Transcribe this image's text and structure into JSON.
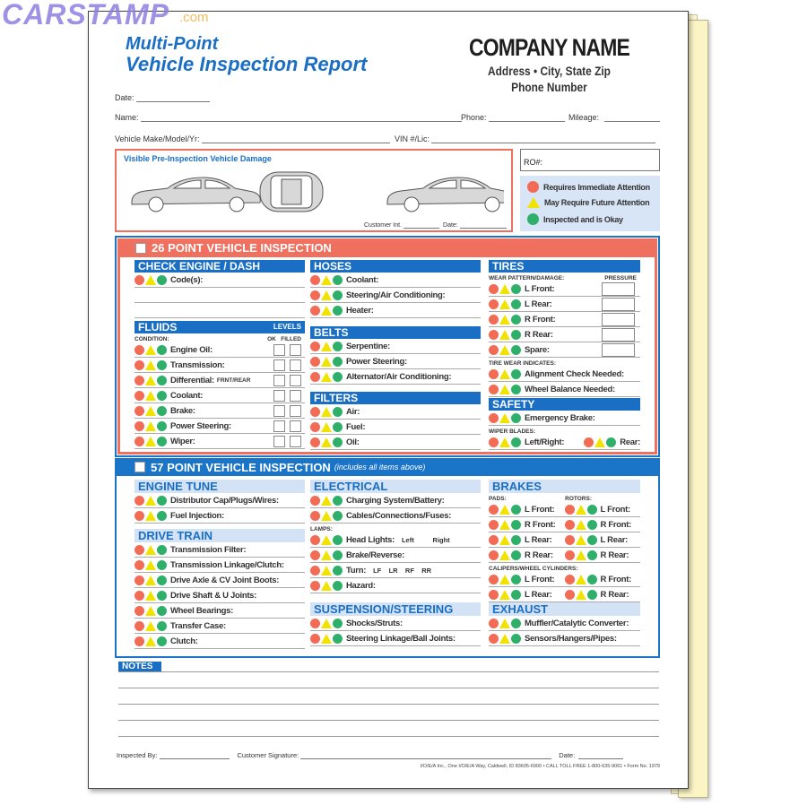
{
  "watermark": {
    "text": "CARSTAMP",
    "suffix": ".com"
  },
  "title": {
    "line1": "Multi-Point",
    "line2": "Vehicle Inspection Report"
  },
  "company": {
    "name": "COMPANY NAME",
    "address": "Address • City, State Zip",
    "phone": "Phone Number"
  },
  "fields": {
    "date": "Date:",
    "name": "Name:",
    "phone": "Phone:",
    "mileage": "Mileage:",
    "vehicle": "Vehicle Make/Model/Yr:",
    "vin": "VIN #/Lic:",
    "ro": "RO#:"
  },
  "damage": {
    "title": "Visible Pre-Inspection Vehicle Damage",
    "customer_int": "Customer Int.",
    "date": "Date:"
  },
  "legend": {
    "red": "Requires Immediate Attention",
    "yellow": "May Require Future Attention",
    "green": "Inspected and is Okay"
  },
  "colors": {
    "red": "#f26b55",
    "yellow": "#f1e300",
    "green": "#2fb06a",
    "blue": "#1a6fc4",
    "salmon": "#f07060"
  },
  "insp26": {
    "title": "26 POINT VEHICLE INSPECTION"
  },
  "insp57": {
    "title": "57 POINT VEHICLE INSPECTION",
    "note": "(includes all items above)"
  },
  "columns": [
    {
      "group": "26",
      "blocks": [
        {
          "type": "head",
          "text": "CHECK ENGINE / DASH  LIGHTS"
        },
        {
          "type": "row",
          "label": "Code(s):"
        },
        {
          "type": "blank"
        },
        {
          "type": "blank"
        },
        {
          "type": "gap"
        },
        {
          "type": "head",
          "text": "FLUIDS",
          "right": "LEVELS"
        },
        {
          "type": "sub",
          "text": "CONDITION:",
          "right": "OK   FILLED"
        },
        {
          "type": "row",
          "label": "Engine Oil:",
          "boxes": true
        },
        {
          "type": "row",
          "label": "Transmission:",
          "boxes": true
        },
        {
          "type": "row",
          "label": "Differential:",
          "extra": "FRNT/REAR",
          "boxes": true
        },
        {
          "type": "row",
          "label": "Coolant:",
          "boxes": true
        },
        {
          "type": "row",
          "label": "Brake:",
          "boxes": true
        },
        {
          "type": "row",
          "label": "Power Steering:",
          "boxes": true
        },
        {
          "type": "row",
          "label": "Wiper:",
          "boxes": true
        }
      ]
    },
    {
      "group": "26",
      "blocks": [
        {
          "type": "head",
          "text": "HOSES"
        },
        {
          "type": "row",
          "label": "Coolant:"
        },
        {
          "type": "row",
          "label": "Steering/Air Conditioning:"
        },
        {
          "type": "row",
          "label": "Heater:"
        },
        {
          "type": "gap",
          "h": 9
        },
        {
          "type": "head",
          "text": "BELTS"
        },
        {
          "type": "row",
          "label": "Serpentine:"
        },
        {
          "type": "row",
          "label": "Power Steering:"
        },
        {
          "type": "row",
          "label": "Alternator/Air Conditioning:"
        },
        {
          "type": "gap",
          "h": 8
        },
        {
          "type": "head",
          "text": "FILTERS"
        },
        {
          "type": "row",
          "label": "Air:"
        },
        {
          "type": "row",
          "label": "Fuel:"
        },
        {
          "type": "row",
          "label": "Oil:"
        }
      ]
    },
    {
      "group": "26",
      "blocks": [
        {
          "type": "head",
          "text": "TIRES"
        },
        {
          "type": "sub",
          "text": "WEAR PATTERN/DAMAGE:",
          "right": "PRESSURE"
        },
        {
          "type": "row",
          "label": "L Front:",
          "pressure": true
        },
        {
          "type": "row",
          "label": "L Rear:",
          "pressure": true
        },
        {
          "type": "row",
          "label": "R Front:",
          "pressure": true
        },
        {
          "type": "row",
          "label": "R Rear:",
          "pressure": true
        },
        {
          "type": "row",
          "label": "Spare:",
          "pressure": true
        },
        {
          "type": "sub",
          "text": "TIRE WEAR INDICATES:"
        },
        {
          "type": "row",
          "label": "Alignment Check Needed:"
        },
        {
          "type": "row",
          "label": "Wheel Balance Needed:"
        },
        {
          "type": "gap",
          "h": 1
        },
        {
          "type": "head",
          "text": "SAFETY"
        },
        {
          "type": "row",
          "label": "Emergency Brake:"
        },
        {
          "type": "sub",
          "text": "WIPER BLADES:"
        },
        {
          "type": "dual",
          "a": "Left/Right:",
          "b": "Rear:"
        }
      ]
    },
    {
      "group": "57",
      "blocks": [
        {
          "type": "head",
          "text": "ENGINE TUNE",
          "light": true
        },
        {
          "type": "row",
          "label": "Distributor Cap/Plugs/Wires:"
        },
        {
          "type": "row",
          "label": "Fuel Injection:"
        },
        {
          "type": "gap",
          "h": 6
        },
        {
          "type": "head",
          "text": "DRIVE TRAIN",
          "light": true
        },
        {
          "type": "row",
          "label": "Transmission Filter:"
        },
        {
          "type": "row",
          "label": "Transmission Linkage/Clutch:"
        },
        {
          "type": "row",
          "label": "Drive Axle & CV Joint Boots:"
        },
        {
          "type": "row",
          "label": "Drive Shaft & U Joints:"
        },
        {
          "type": "row",
          "label": "Wheel Bearings:"
        },
        {
          "type": "row",
          "label": "Transfer Case:"
        },
        {
          "type": "row",
          "label": "Clutch:"
        }
      ]
    },
    {
      "group": "57",
      "blocks": [
        {
          "type": "head",
          "text": "ELECTRICAL",
          "light": true
        },
        {
          "type": "row",
          "label": "Charging System/Battery:"
        },
        {
          "type": "row",
          "label": "Cables/Connections/Fuses:"
        },
        {
          "type": "sub",
          "text": "LAMPS:"
        },
        {
          "type": "row",
          "label": "Head Lights:",
          "extra": "Left          Right"
        },
        {
          "type": "row",
          "label": "Brake/Reverse:"
        },
        {
          "type": "row",
          "label": "Turn:",
          "extra": "LF    LR    RF    RR"
        },
        {
          "type": "row",
          "label": "Hazard:"
        },
        {
          "type": "gap",
          "h": 10
        },
        {
          "type": "head",
          "text": "SUSPENSION/STEERING",
          "light": true
        },
        {
          "type": "row",
          "label": "Shocks/Struts:"
        },
        {
          "type": "row",
          "label": "Steering Linkage/Ball Joints:"
        }
      ]
    },
    {
      "group": "57",
      "blocks": [
        {
          "type": "head",
          "text": "BRAKES",
          "light": true
        },
        {
          "type": "sub",
          "text": "PADS:",
          "right": "ROTORS:"
        },
        {
          "type": "dual",
          "a": "L Front:",
          "b": "L Front:"
        },
        {
          "type": "dual",
          "a": "R Front:",
          "b": "R Front:"
        },
        {
          "type": "dual",
          "a": "L Rear:",
          "b": "L Rear:"
        },
        {
          "type": "dual",
          "a": "R Rear:",
          "b": "R Rear:"
        },
        {
          "type": "sub",
          "text": "CALIPERS/WHEEL CYLINDERS:"
        },
        {
          "type": "dual",
          "a": "L Front:",
          "b": "R Front:"
        },
        {
          "type": "dual",
          "a": "L Rear:",
          "b": "R Rear:"
        },
        {
          "type": "head",
          "text": "EXHAUST",
          "light": true
        },
        {
          "type": "row",
          "label": "Muffler/Catalytic Converter:"
        },
        {
          "type": "row",
          "label": "Sensors/Hangers/Pipes:"
        }
      ]
    }
  ],
  "notes": {
    "title": "NOTES"
  },
  "footer": {
    "inspected_by": "Inspected By:",
    "signature": "Customer Signature:",
    "date": "Date:",
    "address": "I/O/E/A Inc., One I/O/E/A Way, Caldwell, ID 83605-6900 • CALL TOLL FREE 1-800-635-9061 • Form No. 1979"
  }
}
